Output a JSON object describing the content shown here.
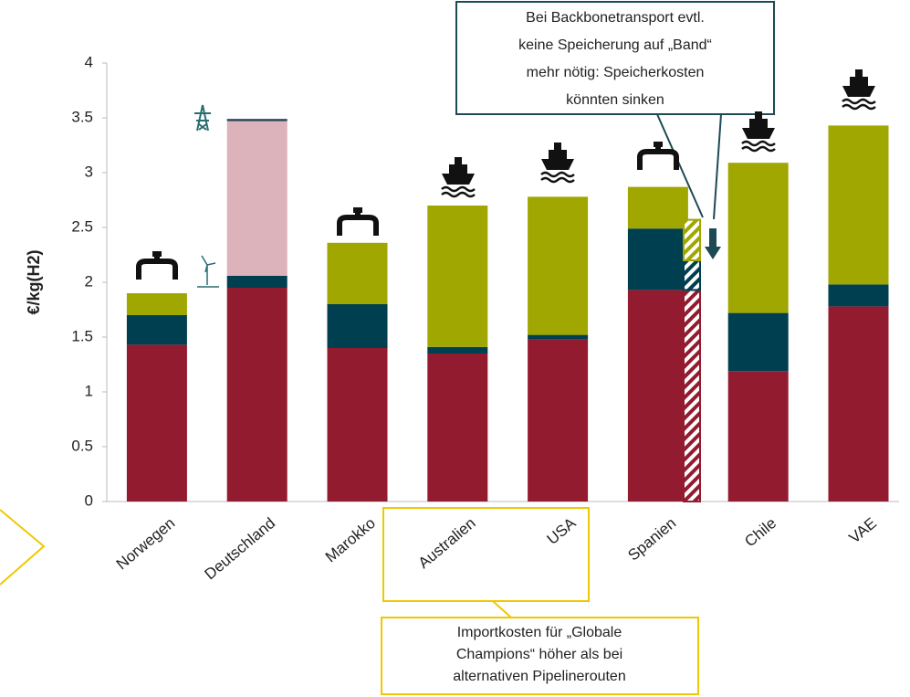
{
  "chart_data": {
    "type": "stacked_bar",
    "y_label": "€/kg(H2)",
    "categories": [
      "Norwegen",
      "Deutschland",
      "Marokko",
      "Australien",
      "USA",
      "Spanien",
      "Chile",
      "VAE"
    ],
    "series": [
      {
        "color": "#931b30",
        "values": [
          1.43,
          1.95,
          1.4,
          1.35,
          1.48,
          1.93,
          1.19,
          1.78
        ]
      },
      {
        "color": "#003f4f",
        "values": [
          0.27,
          0.11,
          0.4,
          0.06,
          0.04,
          0.56,
          0.53,
          0.2
        ]
      },
      {
        "color": "#dcb3ba",
        "values": [
          null,
          1.41,
          null,
          null,
          null,
          null,
          null,
          null
        ]
      },
      {
        "color": "#26405a",
        "values": [
          null,
          0.02,
          null,
          null,
          null,
          null,
          null,
          null
        ]
      },
      {
        "color": "#9fa700",
        "values": [
          0.2,
          null,
          0.56,
          1.29,
          1.26,
          0.38,
          1.37,
          1.45
        ]
      }
    ],
    "hatched_bar": {
      "colors": [
        "#931b30",
        "#003f4f",
        "#9fa700"
      ],
      "values": [
        1.93,
        0.27,
        0.37
      ]
    },
    "ylim": [
      0,
      4
    ],
    "yticks": [
      0,
      0.5,
      1,
      1.5,
      2,
      2.5,
      3,
      3.5,
      4
    ],
    "annotations": [
      {
        "lines": [
          "Bei Backbonetransport evtl.",
          "keine Speicherung auf „Band“",
          "mehr nötig: Speicherkosten",
          "könnten sinken"
        ]
      },
      {
        "lines": [
          "Importkosten für „Globale",
          "Champions“ höher als bei",
          "alternativen Pipelinerouten"
        ]
      }
    ]
  }
}
